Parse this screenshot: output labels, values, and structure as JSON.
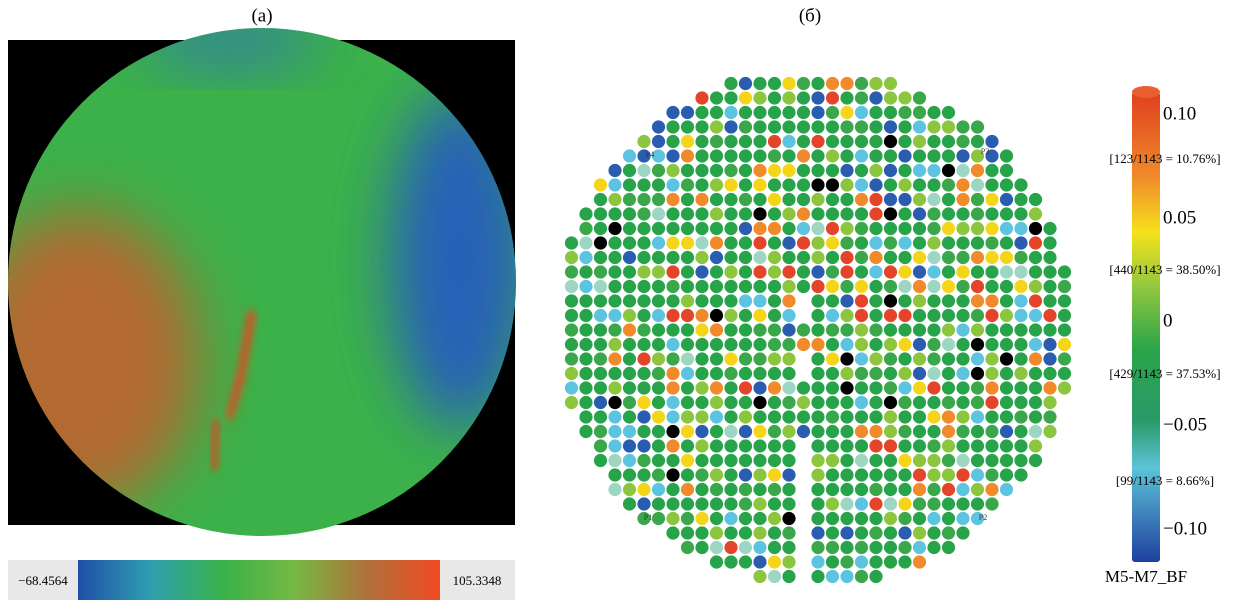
{
  "panel_a": {
    "label": "(a)",
    "scale_min": "−68.4564",
    "scale_max": "105.3348"
  },
  "panel_b": {
    "label": "(б)",
    "markers": [
      "P4",
      "P3",
      "P1",
      "P2"
    ],
    "scale_ticks": [
      "0.10",
      "0.05",
      "0",
      "−0.05",
      "−0.10"
    ],
    "counts": [
      "[123/1143 = 10.76%]",
      "[440/1143 = 38.50%]",
      "[429/1143 = 37.53%]",
      "[99/1143 = 8.66%]"
    ],
    "caption": "M5-M7_BF"
  }
}
